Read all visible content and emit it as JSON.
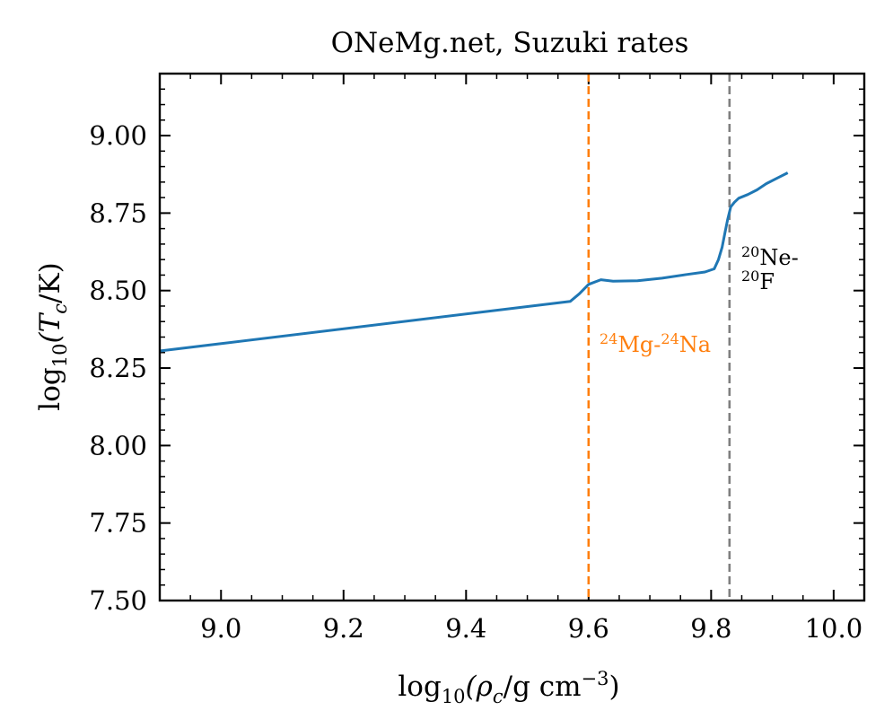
{
  "chart_data": {
    "type": "line",
    "title": "ONeMg.net, Suzuki rates",
    "xlabel": {
      "pre": "log",
      "sub": "10",
      "post": "(ρ",
      "sub2": "c",
      "post2": "/g cm",
      "sup": "−3",
      "end": ")"
    },
    "ylabel": {
      "pre": "log",
      "sub": "10",
      "post": "(T",
      "sub2": "c",
      "end": "/K)"
    },
    "xlim": [
      8.9,
      10.05
    ],
    "ylim": [
      7.5,
      9.2
    ],
    "xticks": [
      9.0,
      9.2,
      9.4,
      9.6,
      9.8,
      10.0
    ],
    "xtick_labels": [
      "9.0",
      "9.2",
      "9.4",
      "9.6",
      "9.8",
      "10.0"
    ],
    "yticks": [
      7.5,
      7.75,
      8.0,
      8.25,
      8.5,
      8.75,
      9.0
    ],
    "ytick_labels": [
      "7.50",
      "7.75",
      "8.00",
      "8.25",
      "8.50",
      "8.75",
      "9.00"
    ],
    "grid": false,
    "series": [
      {
        "color": "#1f77b4",
        "x": [
          8.9,
          9.57,
          9.585,
          9.6,
          9.62,
          9.64,
          9.68,
          9.72,
          9.76,
          9.79,
          9.805,
          9.812,
          9.818,
          9.823,
          9.827,
          9.832,
          9.838,
          9.845,
          9.86,
          9.875,
          9.89,
          9.91,
          9.925
        ],
        "y": [
          8.305,
          8.465,
          8.49,
          8.52,
          8.535,
          8.53,
          8.532,
          8.54,
          8.552,
          8.56,
          8.57,
          8.6,
          8.64,
          8.69,
          8.73,
          8.77,
          8.785,
          8.798,
          8.81,
          8.825,
          8.845,
          8.865,
          8.88
        ]
      }
    ],
    "vlines": [
      {
        "x": 9.6,
        "color": "#ff7f0e",
        "label": {
          "sup1": "24",
          "t1": "Mg-",
          "sup2": "24",
          "t2": "Na"
        }
      },
      {
        "x": 9.83,
        "color": "#7f7f7f",
        "label": {
          "line1_sup": "20",
          "line1": "Ne-",
          "line2_sup": "20",
          "line2": "F"
        }
      }
    ]
  }
}
